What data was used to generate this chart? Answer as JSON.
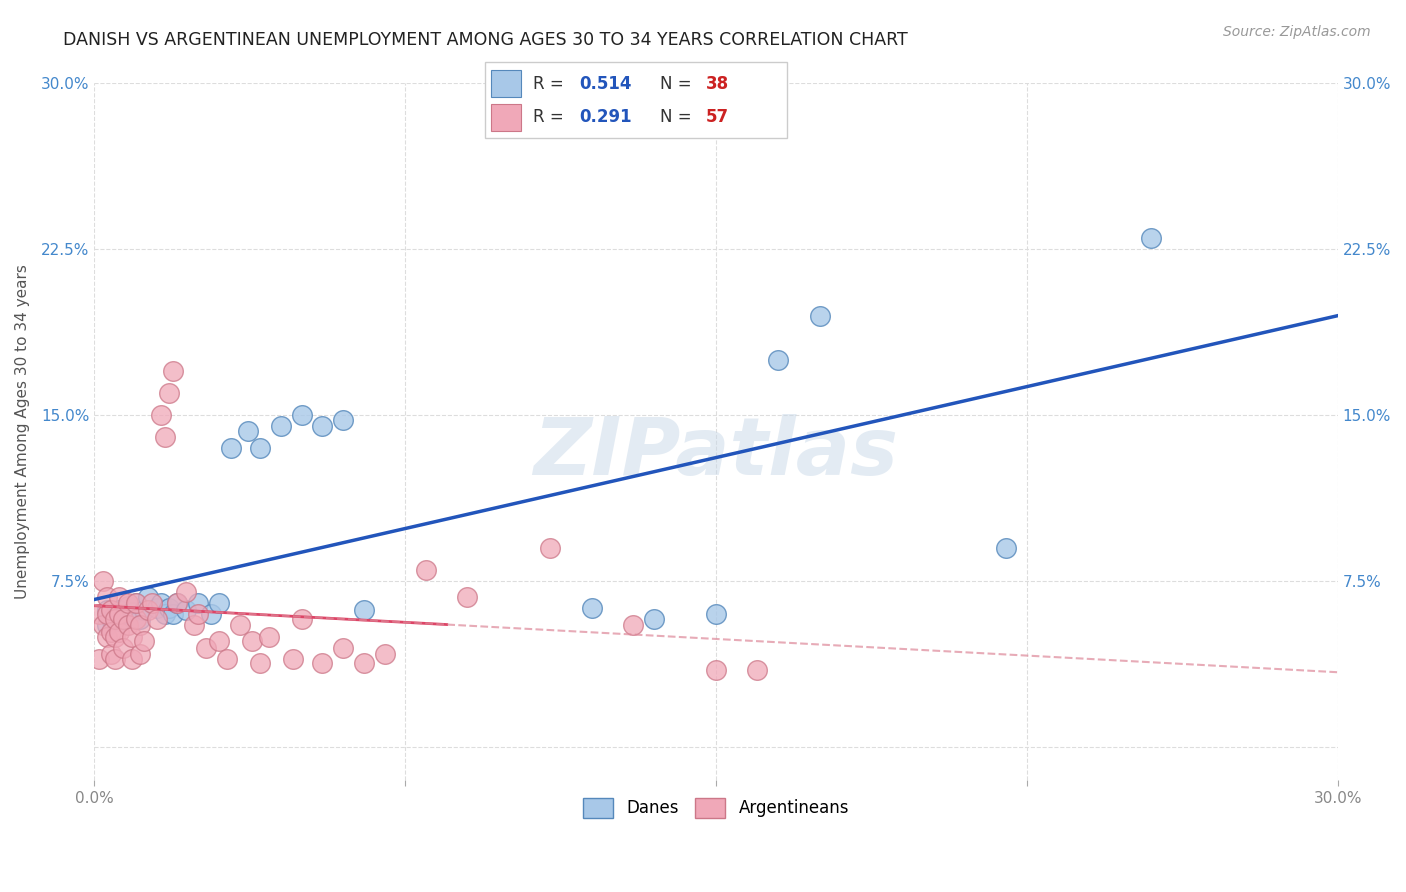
{
  "title": "DANISH VS ARGENTINEAN UNEMPLOYMENT AMONG AGES 30 TO 34 YEARS CORRELATION CHART",
  "source": "Source: ZipAtlas.com",
  "ylabel": "Unemployment Among Ages 30 to 34 years",
  "xlim": [
    0.0,
    0.3
  ],
  "ylim": [
    -0.015,
    0.3
  ],
  "xticks": [
    0.0,
    0.075,
    0.15,
    0.225,
    0.3
  ],
  "xticklabels": [
    "0.0%",
    "",
    "",
    "",
    "30.0%"
  ],
  "yticks": [
    0.0,
    0.075,
    0.15,
    0.225,
    0.3
  ],
  "yticklabels_left": [
    "",
    "7.5%",
    "15.0%",
    "22.5%",
    "30.0%"
  ],
  "yticklabels_right": [
    "",
    "7.5%",
    "15.0%",
    "22.5%",
    "30.0%"
  ],
  "dane_color": "#A8C8E8",
  "dane_edge_color": "#5588BB",
  "arg_color": "#F0A8B8",
  "arg_edge_color": "#CC7788",
  "dane_line_color": "#2255BB",
  "arg_solid_line_color": "#DD4466",
  "arg_dashed_line_color": "#DD8899",
  "watermark_text": "ZIPatlas",
  "legend_R_color": "#2255BB",
  "legend_N_color": "#CC2222",
  "dane_x": [
    0.003,
    0.003,
    0.004,
    0.005,
    0.006,
    0.006,
    0.007,
    0.008,
    0.009,
    0.01,
    0.011,
    0.012,
    0.013,
    0.015,
    0.016,
    0.017,
    0.018,
    0.019,
    0.02,
    0.022,
    0.025,
    0.028,
    0.03,
    0.033,
    0.037,
    0.04,
    0.045,
    0.05,
    0.055,
    0.06,
    0.065,
    0.12,
    0.135,
    0.15,
    0.165,
    0.175,
    0.22,
    0.255
  ],
  "dane_y": [
    0.055,
    0.062,
    0.058,
    0.06,
    0.057,
    0.062,
    0.06,
    0.064,
    0.061,
    0.065,
    0.058,
    0.062,
    0.068,
    0.063,
    0.065,
    0.06,
    0.063,
    0.06,
    0.065,
    0.062,
    0.065,
    0.06,
    0.065,
    0.135,
    0.143,
    0.135,
    0.145,
    0.15,
    0.145,
    0.148,
    0.062,
    0.063,
    0.058,
    0.06,
    0.175,
    0.195,
    0.09,
    0.23
  ],
  "arg_x": [
    0.001,
    0.001,
    0.002,
    0.002,
    0.003,
    0.003,
    0.003,
    0.004,
    0.004,
    0.004,
    0.005,
    0.005,
    0.005,
    0.006,
    0.006,
    0.006,
    0.007,
    0.007,
    0.008,
    0.008,
    0.009,
    0.009,
    0.01,
    0.01,
    0.011,
    0.011,
    0.012,
    0.013,
    0.014,
    0.015,
    0.016,
    0.017,
    0.018,
    0.019,
    0.02,
    0.022,
    0.024,
    0.025,
    0.027,
    0.03,
    0.032,
    0.035,
    0.038,
    0.04,
    0.042,
    0.048,
    0.05,
    0.055,
    0.06,
    0.065,
    0.07,
    0.08,
    0.09,
    0.11,
    0.13,
    0.15,
    0.16
  ],
  "arg_y": [
    0.06,
    0.04,
    0.055,
    0.075,
    0.05,
    0.06,
    0.068,
    0.042,
    0.052,
    0.062,
    0.05,
    0.058,
    0.04,
    0.052,
    0.06,
    0.068,
    0.058,
    0.045,
    0.055,
    0.065,
    0.04,
    0.05,
    0.058,
    0.065,
    0.042,
    0.055,
    0.048,
    0.062,
    0.065,
    0.058,
    0.15,
    0.14,
    0.16,
    0.17,
    0.065,
    0.07,
    0.055,
    0.06,
    0.045,
    0.048,
    0.04,
    0.055,
    0.048,
    0.038,
    0.05,
    0.04,
    0.058,
    0.038,
    0.045,
    0.038,
    0.042,
    0.08,
    0.068,
    0.09,
    0.055,
    0.035,
    0.035
  ],
  "arg_solid_xrange": [
    0.0,
    0.085
  ],
  "grid_color": "#DDDDDD",
  "tick_color": "#888888",
  "right_tick_color": "#4488CC"
}
